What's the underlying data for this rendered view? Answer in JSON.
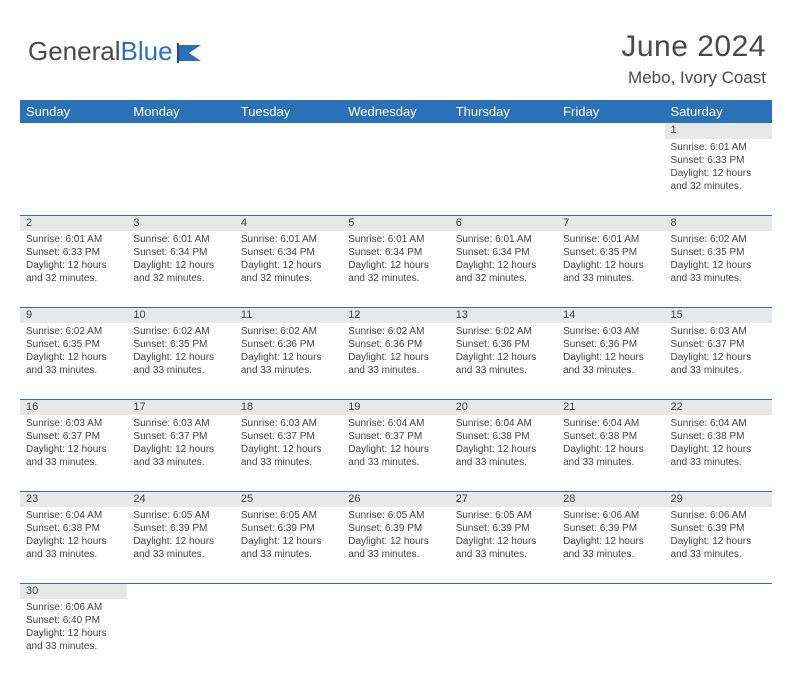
{
  "logo": {
    "text1": "General",
    "text2": "Blue"
  },
  "title": "June 2024",
  "location": "Mebo, Ivory Coast",
  "colors": {
    "header_bg": "#2a71b8",
    "header_text": "#ffffff",
    "daynum_bg": "#e8e8e8",
    "cell_bg": "#ffffff",
    "text": "#444444",
    "rule": "#2a71b8"
  },
  "weekdays": [
    "Sunday",
    "Monday",
    "Tuesday",
    "Wednesday",
    "Thursday",
    "Friday",
    "Saturday"
  ],
  "weeks": [
    [
      null,
      null,
      null,
      null,
      null,
      null,
      {
        "n": "1",
        "sr": "6:01 AM",
        "ss": "6:33 PM",
        "dl": "12 hours and 32 minutes."
      }
    ],
    [
      {
        "n": "2",
        "sr": "6:01 AM",
        "ss": "6:33 PM",
        "dl": "12 hours and 32 minutes."
      },
      {
        "n": "3",
        "sr": "6:01 AM",
        "ss": "6:34 PM",
        "dl": "12 hours and 32 minutes."
      },
      {
        "n": "4",
        "sr": "6:01 AM",
        "ss": "6:34 PM",
        "dl": "12 hours and 32 minutes."
      },
      {
        "n": "5",
        "sr": "6:01 AM",
        "ss": "6:34 PM",
        "dl": "12 hours and 32 minutes."
      },
      {
        "n": "6",
        "sr": "6:01 AM",
        "ss": "6:34 PM",
        "dl": "12 hours and 32 minutes."
      },
      {
        "n": "7",
        "sr": "6:01 AM",
        "ss": "6:35 PM",
        "dl": "12 hours and 33 minutes."
      },
      {
        "n": "8",
        "sr": "6:02 AM",
        "ss": "6:35 PM",
        "dl": "12 hours and 33 minutes."
      }
    ],
    [
      {
        "n": "9",
        "sr": "6:02 AM",
        "ss": "6:35 PM",
        "dl": "12 hours and 33 minutes."
      },
      {
        "n": "10",
        "sr": "6:02 AM",
        "ss": "6:35 PM",
        "dl": "12 hours and 33 minutes."
      },
      {
        "n": "11",
        "sr": "6:02 AM",
        "ss": "6:36 PM",
        "dl": "12 hours and 33 minutes."
      },
      {
        "n": "12",
        "sr": "6:02 AM",
        "ss": "6:36 PM",
        "dl": "12 hours and 33 minutes."
      },
      {
        "n": "13",
        "sr": "6:02 AM",
        "ss": "6:36 PM",
        "dl": "12 hours and 33 minutes."
      },
      {
        "n": "14",
        "sr": "6:03 AM",
        "ss": "6:36 PM",
        "dl": "12 hours and 33 minutes."
      },
      {
        "n": "15",
        "sr": "6:03 AM",
        "ss": "6:37 PM",
        "dl": "12 hours and 33 minutes."
      }
    ],
    [
      {
        "n": "16",
        "sr": "6:03 AM",
        "ss": "6:37 PM",
        "dl": "12 hours and 33 minutes."
      },
      {
        "n": "17",
        "sr": "6:03 AM",
        "ss": "6:37 PM",
        "dl": "12 hours and 33 minutes."
      },
      {
        "n": "18",
        "sr": "6:03 AM",
        "ss": "6:37 PM",
        "dl": "12 hours and 33 minutes."
      },
      {
        "n": "19",
        "sr": "6:04 AM",
        "ss": "6:37 PM",
        "dl": "12 hours and 33 minutes."
      },
      {
        "n": "20",
        "sr": "6:04 AM",
        "ss": "6:38 PM",
        "dl": "12 hours and 33 minutes."
      },
      {
        "n": "21",
        "sr": "6:04 AM",
        "ss": "6:38 PM",
        "dl": "12 hours and 33 minutes."
      },
      {
        "n": "22",
        "sr": "6:04 AM",
        "ss": "6:38 PM",
        "dl": "12 hours and 33 minutes."
      }
    ],
    [
      {
        "n": "23",
        "sr": "6:04 AM",
        "ss": "6:38 PM",
        "dl": "12 hours and 33 minutes."
      },
      {
        "n": "24",
        "sr": "6:05 AM",
        "ss": "6:39 PM",
        "dl": "12 hours and 33 minutes."
      },
      {
        "n": "25",
        "sr": "6:05 AM",
        "ss": "6:39 PM",
        "dl": "12 hours and 33 minutes."
      },
      {
        "n": "26",
        "sr": "6:05 AM",
        "ss": "6:39 PM",
        "dl": "12 hours and 33 minutes."
      },
      {
        "n": "27",
        "sr": "6:05 AM",
        "ss": "6:39 PM",
        "dl": "12 hours and 33 minutes."
      },
      {
        "n": "28",
        "sr": "6:06 AM",
        "ss": "6:39 PM",
        "dl": "12 hours and 33 minutes."
      },
      {
        "n": "29",
        "sr": "6:06 AM",
        "ss": "6:39 PM",
        "dl": "12 hours and 33 minutes."
      }
    ],
    [
      {
        "n": "30",
        "sr": "6:06 AM",
        "ss": "6:40 PM",
        "dl": "12 hours and 33 minutes."
      },
      null,
      null,
      null,
      null,
      null,
      null
    ]
  ],
  "labels": {
    "sunrise": "Sunrise:",
    "sunset": "Sunset:",
    "daylight": "Daylight:"
  }
}
